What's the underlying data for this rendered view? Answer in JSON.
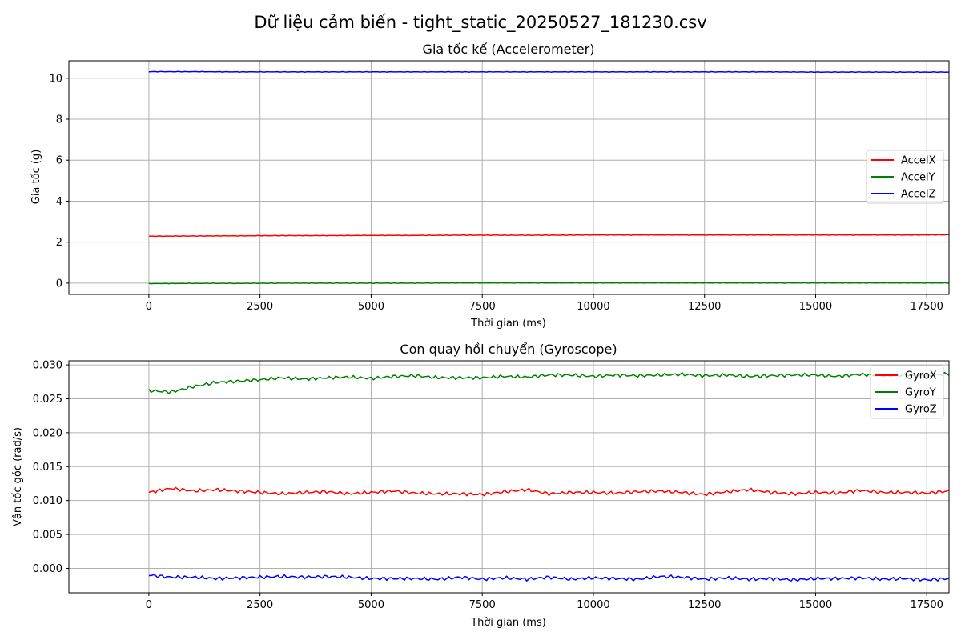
{
  "figure_title": "Dữ liệu cảm biến - tight_static_20250527_181230.csv",
  "chart_data": [
    {
      "type": "line",
      "title": "Gia tốc kế (Accelerometer)",
      "xlabel": "Thời gian (ms)",
      "ylabel": "Gia tốc (g)",
      "xlim": [
        -1800,
        18000
      ],
      "ylim": [
        -0.55,
        10.85
      ],
      "xticks": [
        0,
        2500,
        5000,
        7500,
        10000,
        12500,
        15000,
        17500
      ],
      "xtick_labels": [
        "0",
        "2500",
        "5000",
        "7500",
        "10000",
        "12500",
        "15000",
        "17500"
      ],
      "yticks": [
        0,
        2,
        4,
        6,
        8,
        10
      ],
      "ytick_labels": [
        "0",
        "2",
        "4",
        "6",
        "8",
        "10"
      ],
      "grid": true,
      "legend_position": "center-right",
      "x": [
        0,
        1000,
        2000,
        3000,
        4000,
        5000,
        6000,
        7000,
        8000,
        9000,
        10000,
        11000,
        12000,
        13000,
        14000,
        15000,
        16000,
        17000,
        18000
      ],
      "series": [
        {
          "name": "AccelX",
          "color": "#ff0000",
          "values": [
            2.29,
            2.3,
            2.31,
            2.32,
            2.32,
            2.33,
            2.33,
            2.34,
            2.34,
            2.34,
            2.35,
            2.35,
            2.35,
            2.35,
            2.35,
            2.35,
            2.35,
            2.35,
            2.36
          ]
        },
        {
          "name": "AccelY",
          "color": "#008000",
          "values": [
            -0.02,
            -0.01,
            -0.01,
            0.0,
            0.0,
            0.0,
            0.0,
            0.01,
            0.01,
            0.01,
            0.01,
            0.01,
            0.01,
            0.01,
            0.01,
            0.01,
            0.01,
            0.01,
            0.01
          ]
        },
        {
          "name": "AccelZ",
          "color": "#0000ff",
          "values": [
            10.32,
            10.32,
            10.31,
            10.31,
            10.31,
            10.31,
            10.31,
            10.31,
            10.31,
            10.31,
            10.31,
            10.31,
            10.31,
            10.31,
            10.31,
            10.3,
            10.3,
            10.3,
            10.3
          ]
        }
      ]
    },
    {
      "type": "line",
      "title": "Con quay hồi chuyển (Gyroscope)",
      "xlabel": "Thời gian (ms)",
      "ylabel": "Vận tốc góc (rad/s)",
      "xlim": [
        -1800,
        18000
      ],
      "ylim": [
        -0.0036,
        0.0306
      ],
      "xticks": [
        0,
        2500,
        5000,
        7500,
        10000,
        12500,
        15000,
        17500
      ],
      "xtick_labels": [
        "0",
        "2500",
        "5000",
        "7500",
        "10000",
        "12500",
        "15000",
        "17500"
      ],
      "yticks": [
        0.0,
        0.005,
        0.01,
        0.015,
        0.02,
        0.025,
        0.03
      ],
      "ytick_labels": [
        "0.000",
        "0.005",
        "0.010",
        "0.015",
        "0.020",
        "0.025",
        "0.030"
      ],
      "grid": true,
      "legend_position": "top-right",
      "x": [
        0,
        500,
        1000,
        1500,
        2000,
        2500,
        3000,
        3500,
        4000,
        4500,
        5000,
        5500,
        6000,
        6500,
        7000,
        7500,
        8000,
        8500,
        9000,
        9500,
        10000,
        10500,
        11000,
        11500,
        12000,
        12500,
        13000,
        13500,
        14000,
        14500,
        15000,
        15500,
        16000,
        16500,
        17000,
        17500,
        18000
      ],
      "series": [
        {
          "name": "GyroX",
          "color": "#ff0000",
          "values": [
            0.0112,
            0.0118,
            0.0114,
            0.0116,
            0.0114,
            0.0112,
            0.011,
            0.0112,
            0.0113,
            0.011,
            0.0112,
            0.0114,
            0.0111,
            0.011,
            0.011,
            0.0109,
            0.0113,
            0.0116,
            0.011,
            0.0112,
            0.0112,
            0.0111,
            0.0113,
            0.0114,
            0.0112,
            0.0109,
            0.0113,
            0.0116,
            0.0112,
            0.011,
            0.0112,
            0.0111,
            0.0115,
            0.0112,
            0.0112,
            0.0111,
            0.0114
          ]
        },
        {
          "name": "GyroY",
          "color": "#008000",
          "values": [
            0.0262,
            0.026,
            0.0268,
            0.0274,
            0.0276,
            0.0278,
            0.0281,
            0.0279,
            0.0281,
            0.0282,
            0.028,
            0.0283,
            0.0284,
            0.0281,
            0.0281,
            0.0281,
            0.0283,
            0.0282,
            0.0285,
            0.0285,
            0.0283,
            0.0285,
            0.0284,
            0.0285,
            0.0286,
            0.0284,
            0.0285,
            0.0283,
            0.0284,
            0.0285,
            0.0285,
            0.0283,
            0.0286,
            0.0284,
            0.0285,
            0.0284,
            0.0287
          ]
        },
        {
          "name": "GyroZ",
          "color": "#0000ff",
          "values": [
            -0.001,
            -0.0013,
            -0.0013,
            -0.0015,
            -0.0014,
            -0.0013,
            -0.0012,
            -0.0013,
            -0.0012,
            -0.0013,
            -0.0015,
            -0.0015,
            -0.0015,
            -0.0016,
            -0.0013,
            -0.0016,
            -0.0014,
            -0.0016,
            -0.0013,
            -0.0016,
            -0.0014,
            -0.0015,
            -0.0016,
            -0.0012,
            -0.0013,
            -0.0016,
            -0.0014,
            -0.0016,
            -0.0015,
            -0.0017,
            -0.0015,
            -0.0015,
            -0.0014,
            -0.0016,
            -0.0015,
            -0.0017,
            -0.0015
          ]
        }
      ]
    }
  ]
}
